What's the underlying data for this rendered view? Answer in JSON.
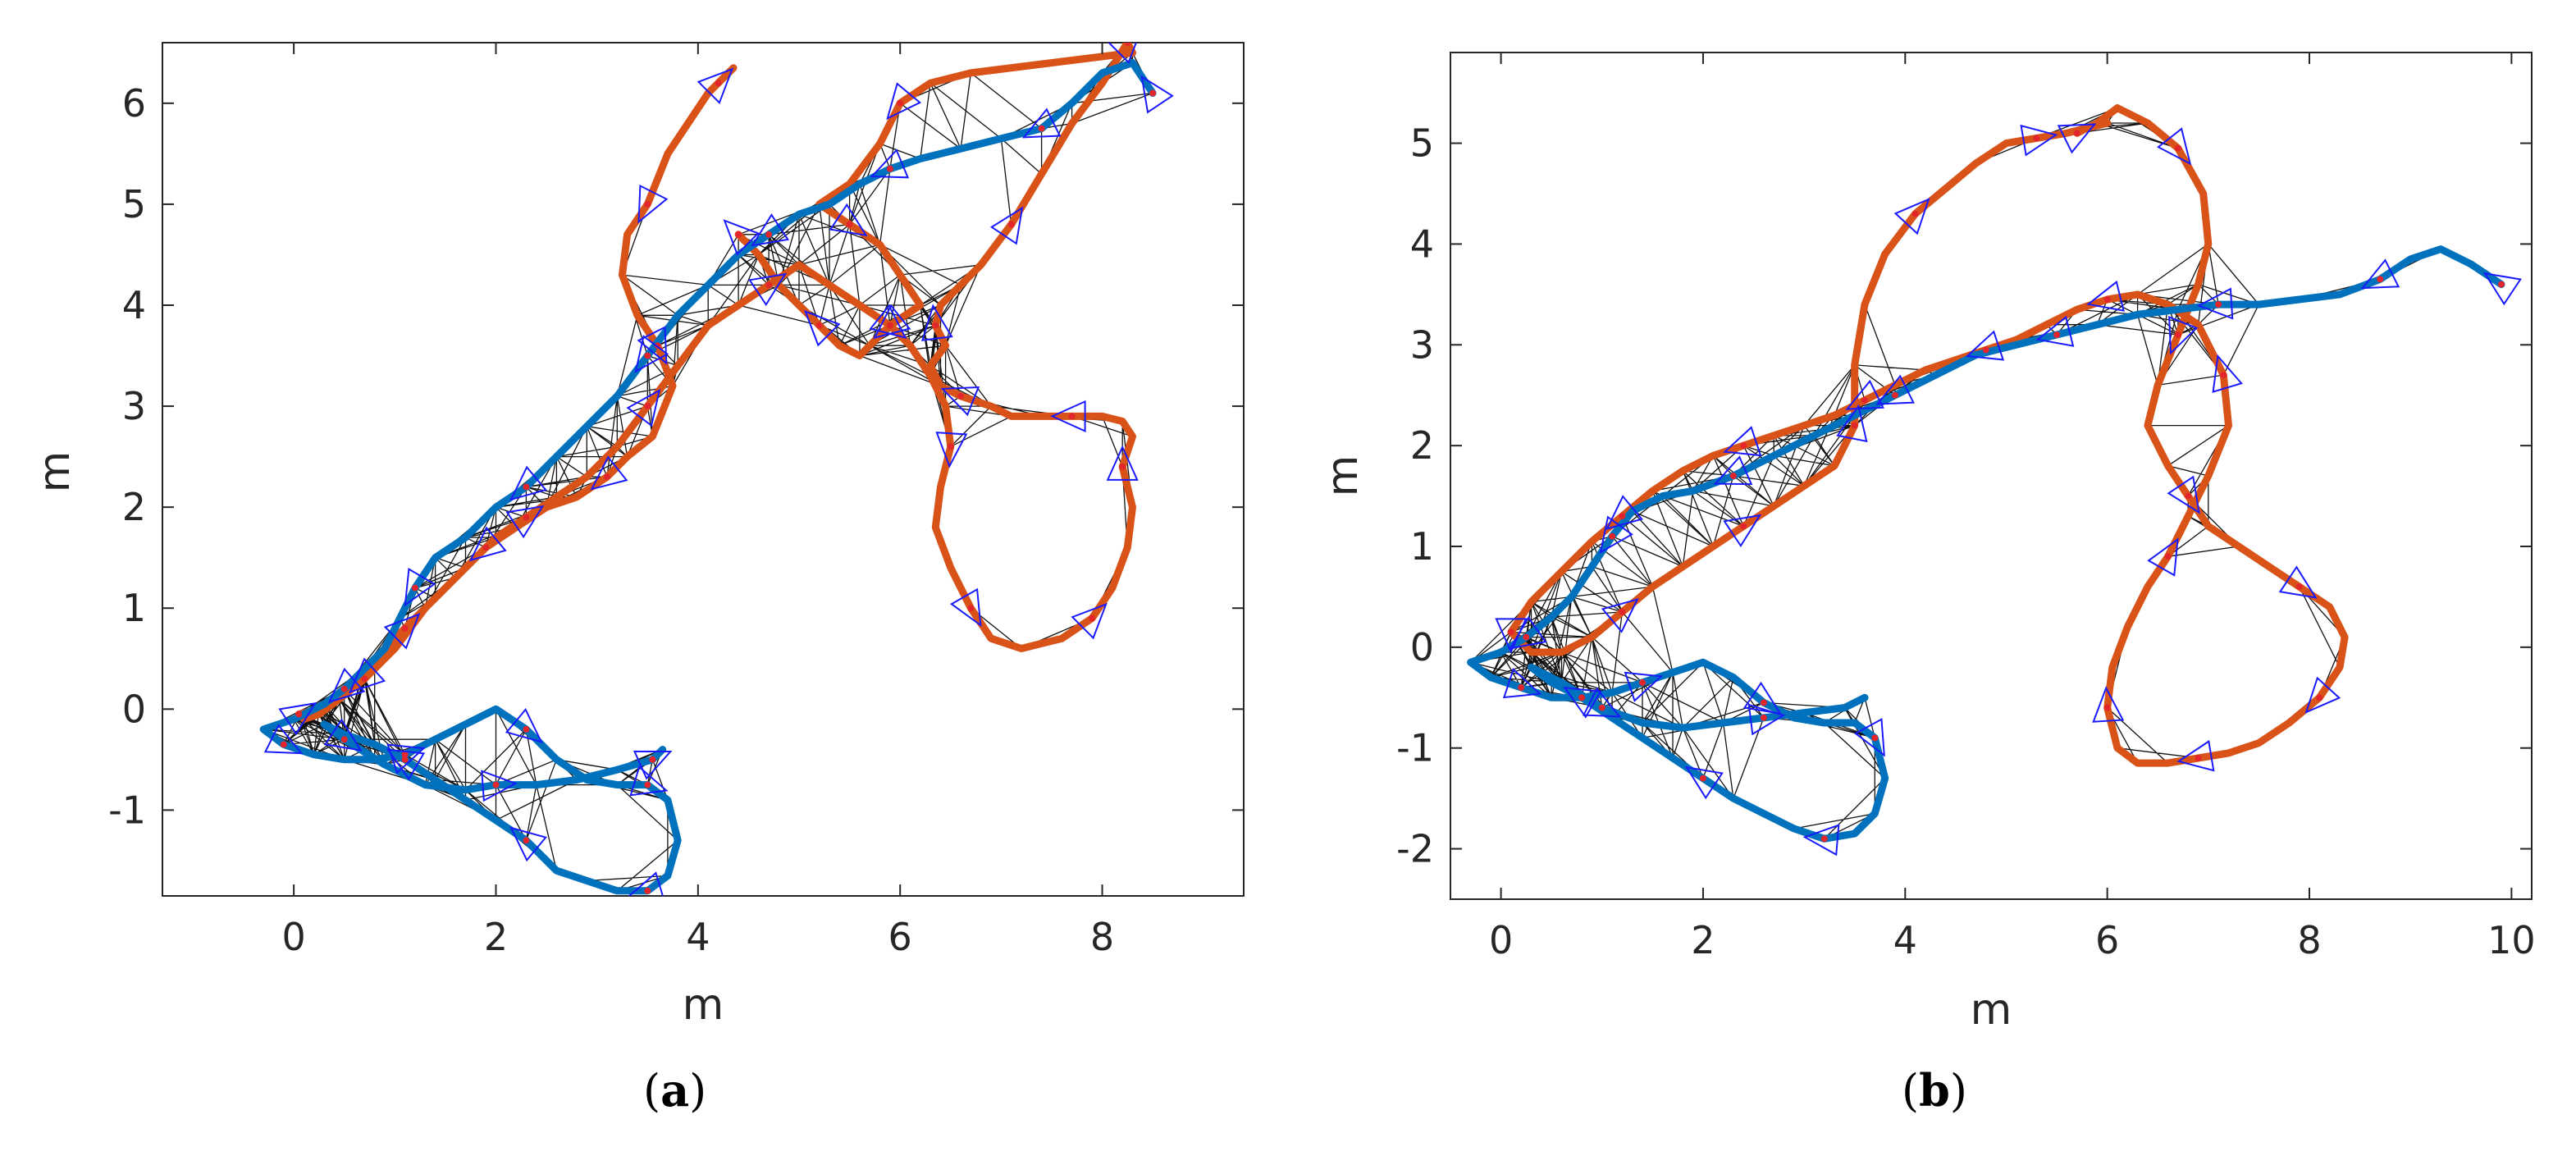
{
  "chart_data": [
    {
      "type": "line",
      "panel_label": "a",
      "xlabel": "m",
      "ylabel": "m",
      "xlim": [
        -1.3,
        9.4
      ],
      "ylim": [
        -1.85,
        6.6
      ],
      "xticks": [
        0,
        2,
        4,
        6,
        8
      ],
      "yticks": [
        -1,
        0,
        1,
        2,
        3,
        4,
        5,
        6
      ],
      "ytick_labels": [
        "-1",
        "0",
        "1",
        "2",
        "3",
        "4",
        "5",
        "6"
      ],
      "grid": false,
      "legend": "none",
      "series": [
        {
          "color": "#d95319",
          "x": [
            4.2,
            4.35,
            4.1,
            3.7,
            3.5,
            3.3,
            3.25,
            3.4,
            3.6,
            3.75,
            3.55,
            3.3,
            3.1,
            2.8,
            2.5,
            2.2,
            1.9,
            1.6,
            1.3,
            1.0,
            0.7,
            0.45,
            0.25,
            0.1,
            0.05,
            0.25,
            0.5,
            0.8,
            1.1,
            1.4,
            1.7,
            2.0,
            2.3,
            2.6,
            2.9,
            3.2,
            3.5,
            3.8,
            4.1,
            4.4,
            4.7,
            5.0,
            5.3,
            5.6,
            5.9,
            6.1,
            6.3,
            6.45,
            6.5,
            6.4,
            6.35,
            6.5,
            6.7,
            6.9,
            7.2,
            7.6,
            7.9,
            8.1,
            8.25,
            8.3,
            8.2,
            8.3,
            8.2,
            8.0,
            7.7,
            7.4,
            7.1,
            6.9,
            6.6,
            6.4,
            6.3,
            6.45,
            6.35,
            6.4,
            6.6,
            6.8,
            7.1,
            7.4,
            7.7,
            8.0,
            8.25,
            8.3,
            6.7,
            6.3,
            6.0,
            5.8,
            5.5,
            5.2,
            5.5,
            5.8,
            6.0,
            6.2,
            5.9,
            5.7,
            5.6,
            5.4,
            5.2,
            5.0,
            4.8,
            4.6,
            4.4
          ],
          "y": [
            6.2,
            6.35,
            6.1,
            5.5,
            5.0,
            4.7,
            4.3,
            3.9,
            3.6,
            3.2,
            2.7,
            2.5,
            2.3,
            2.1,
            2.0,
            1.8,
            1.6,
            1.3,
            1.0,
            0.6,
            0.3,
            0.1,
            -0.05,
            -0.1,
            -0.05,
            0.0,
            0.2,
            0.5,
            0.8,
            1.1,
            1.4,
            1.7,
            1.9,
            2.1,
            2.3,
            2.6,
            3.0,
            3.4,
            3.8,
            4.0,
            4.2,
            4.4,
            4.2,
            4.0,
            3.8,
            3.6,
            3.3,
            3.0,
            2.6,
            2.2,
            1.8,
            1.4,
            1.0,
            0.7,
            0.6,
            0.7,
            0.9,
            1.2,
            1.6,
            2.0,
            2.4,
            2.7,
            2.85,
            2.9,
            2.9,
            2.9,
            2.9,
            3.0,
            3.1,
            3.2,
            3.4,
            3.6,
            3.8,
            4.0,
            4.2,
            4.4,
            4.8,
            5.3,
            5.8,
            6.2,
            6.6,
            6.5,
            6.3,
            6.2,
            6.0,
            5.6,
            5.2,
            5.0,
            4.8,
            4.6,
            4.3,
            4.0,
            3.8,
            3.6,
            3.5,
            3.6,
            3.8,
            4.0,
            4.2,
            4.5,
            4.7
          ]
        },
        {
          "color": "#0072bd",
          "x": [
            8.5,
            8.3,
            8.0,
            7.7,
            7.4,
            7.0,
            6.6,
            6.2,
            5.9,
            5.6,
            5.3,
            5.0,
            4.7,
            4.4,
            4.1,
            3.8,
            3.5,
            3.2,
            2.9,
            2.6,
            2.3,
            2.0,
            1.7,
            1.4,
            1.2,
            1.05,
            0.9,
            0.7,
            0.5,
            0.3,
            0.0,
            -0.3,
            -0.1,
            0.2,
            0.5,
            0.8,
            1.1,
            1.4,
            1.7,
            2.0,
            2.3,
            2.6,
            2.9,
            3.2,
            3.5,
            3.7,
            3.8,
            3.7,
            3.5,
            3.2,
            2.9,
            2.6,
            2.3,
            2.0,
            1.7,
            1.4,
            1.1,
            0.8,
            0.5,
            0.3,
            0.5,
            0.9,
            1.3,
            1.7,
            2.0,
            2.4,
            2.8,
            3.2,
            3.55,
            3.65
          ],
          "y": [
            6.1,
            6.4,
            6.3,
            6.0,
            5.75,
            5.65,
            5.55,
            5.45,
            5.35,
            5.2,
            5.0,
            4.9,
            4.7,
            4.5,
            4.2,
            3.9,
            3.5,
            3.1,
            2.8,
            2.5,
            2.2,
            2.0,
            1.7,
            1.5,
            1.2,
            0.9,
            0.6,
            0.4,
            0.2,
            0.05,
            -0.1,
            -0.2,
            -0.35,
            -0.45,
            -0.5,
            -0.5,
            -0.45,
            -0.3,
            -0.15,
            0.0,
            -0.2,
            -0.5,
            -0.7,
            -0.75,
            -0.75,
            -0.9,
            -1.3,
            -1.65,
            -1.8,
            -1.8,
            -1.7,
            -1.6,
            -1.3,
            -1.1,
            -0.9,
            -0.7,
            -0.5,
            -0.35,
            -0.25,
            -0.15,
            -0.3,
            -0.55,
            -0.75,
            -0.8,
            -0.75,
            -0.75,
            -0.7,
            -0.6,
            -0.5,
            -0.4
          ]
        }
      ]
    },
    {
      "type": "line",
      "panel_label": "b",
      "xlabel": "m",
      "ylabel": "m",
      "xlim": [
        -0.5,
        10.2
      ],
      "ylim": [
        -2.5,
        5.9
      ],
      "xticks": [
        0,
        2,
        4,
        6,
        8,
        10
      ],
      "yticks": [
        -2,
        -1,
        0,
        1,
        2,
        3,
        4,
        5
      ],
      "ytick_labels": [
        "-2",
        "-1",
        "0",
        "1",
        "2",
        "3",
        "4",
        "5"
      ],
      "grid": false,
      "legend": "none",
      "series": [
        {
          "color": "#d95319",
          "x": [
            5.7,
            5.9,
            6.1,
            6.4,
            6.7,
            6.95,
            7.0,
            6.9,
            6.7,
            6.5,
            6.4,
            6.6,
            6.8,
            7.0,
            7.3,
            7.6,
            7.9,
            8.2,
            8.35,
            8.3,
            8.1,
            7.8,
            7.5,
            7.2,
            6.9,
            6.6,
            6.3,
            6.1,
            6.0,
            6.05,
            6.2,
            6.4,
            6.6,
            6.8,
            7.0,
            7.2,
            7.15,
            6.9,
            6.6,
            6.3,
            6.0,
            5.7,
            5.4,
            5.1,
            4.8,
            4.5,
            4.2,
            3.9,
            3.6,
            3.3,
            3.0,
            2.7,
            2.4,
            2.1,
            1.8,
            1.5,
            1.2,
            0.9,
            0.6,
            0.3,
            0.1,
            0.3,
            0.6,
            0.9,
            1.2,
            1.5,
            1.8,
            2.1,
            2.4,
            2.7,
            3.0,
            3.3,
            3.5,
            3.5,
            3.6,
            3.8,
            4.1,
            4.4,
            4.7,
            5.0,
            5.3,
            5.6,
            5.8,
            6.0
          ],
          "y": [
            5.1,
            5.2,
            5.35,
            5.2,
            4.95,
            4.5,
            4.0,
            3.6,
            3.1,
            2.6,
            2.2,
            1.8,
            1.5,
            1.2,
            1.0,
            0.8,
            0.6,
            0.4,
            0.1,
            -0.2,
            -0.5,
            -0.75,
            -0.95,
            -1.05,
            -1.1,
            -1.15,
            -1.15,
            -1.0,
            -0.6,
            -0.2,
            0.2,
            0.6,
            0.9,
            1.3,
            1.7,
            2.2,
            2.7,
            3.2,
            3.4,
            3.5,
            3.45,
            3.35,
            3.2,
            3.05,
            2.95,
            2.85,
            2.75,
            2.6,
            2.45,
            2.3,
            2.2,
            2.1,
            2.0,
            1.9,
            1.75,
            1.55,
            1.3,
            1.05,
            0.75,
            0.45,
            0.15,
            -0.05,
            -0.05,
            0.1,
            0.35,
            0.6,
            0.8,
            1.0,
            1.2,
            1.4,
            1.6,
            1.8,
            2.2,
            2.8,
            3.4,
            3.9,
            4.3,
            4.55,
            4.8,
            5.0,
            5.05,
            5.1,
            5.15,
            5.2
          ]
        },
        {
          "color": "#0072bd",
          "x": [
            9.9,
            9.6,
            9.3,
            9.0,
            8.7,
            8.3,
            7.9,
            7.5,
            7.1,
            6.7,
            6.3,
            5.9,
            5.5,
            5.1,
            4.7,
            4.3,
            3.9,
            3.5,
            3.1,
            2.7,
            2.3,
            1.9,
            1.6,
            1.3,
            1.1,
            0.9,
            0.7,
            0.5,
            0.25,
            0.0,
            -0.3,
            -0.1,
            0.2,
            0.5,
            0.8,
            1.1,
            1.4,
            1.7,
            2.0,
            2.3,
            2.6,
            2.9,
            3.2,
            3.5,
            3.7,
            3.8,
            3.7,
            3.5,
            3.2,
            2.9,
            2.6,
            2.3,
            2.0,
            1.7,
            1.4,
            1.1,
            0.8,
            0.5,
            0.3,
            0.6,
            1.0,
            1.4,
            1.8,
            2.2,
            2.6,
            3.0,
            3.4,
            3.6
          ],
          "y": [
            3.6,
            3.8,
            3.95,
            3.85,
            3.65,
            3.5,
            3.45,
            3.4,
            3.4,
            3.35,
            3.3,
            3.2,
            3.1,
            3.0,
            2.9,
            2.7,
            2.5,
            2.3,
            2.1,
            1.9,
            1.7,
            1.55,
            1.5,
            1.35,
            1.1,
            0.8,
            0.5,
            0.3,
            0.1,
            -0.05,
            -0.15,
            -0.3,
            -0.4,
            -0.5,
            -0.5,
            -0.45,
            -0.35,
            -0.25,
            -0.15,
            -0.3,
            -0.55,
            -0.7,
            -0.75,
            -0.75,
            -0.9,
            -1.3,
            -1.65,
            -1.85,
            -1.9,
            -1.8,
            -1.65,
            -1.5,
            -1.3,
            -1.1,
            -0.9,
            -0.7,
            -0.5,
            -0.35,
            -0.2,
            -0.35,
            -0.6,
            -0.75,
            -0.8,
            -0.75,
            -0.7,
            -0.65,
            -0.6,
            -0.5
          ]
        }
      ]
    }
  ]
}
